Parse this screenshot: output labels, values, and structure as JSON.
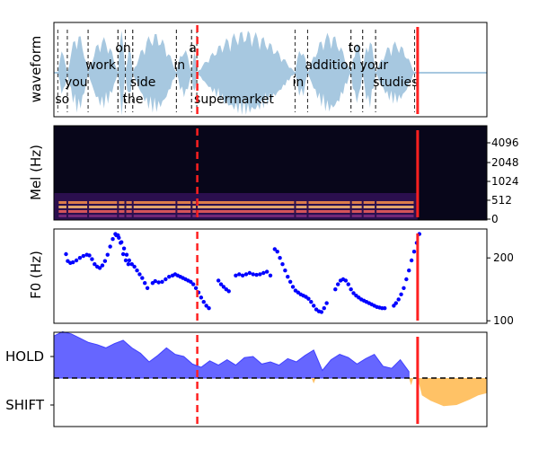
{
  "chart_data": [
    {
      "type": "area",
      "panel": "waveform",
      "ylabel": "waveform",
      "colors": {
        "wave": "#a7c8e0",
        "boundary": "#333333",
        "current_time": "#ff2020",
        "frame_edge": "#ff2020"
      },
      "words": [
        {
          "text": "so",
          "start": 0.09,
          "end": 0.31
        },
        {
          "text": "you",
          "start": 0.31,
          "end": 0.79
        },
        {
          "text": "work",
          "start": 0.79,
          "end": 1.48
        },
        {
          "text": "on",
          "start": 1.48,
          "end": 1.65
        },
        {
          "text": "the",
          "start": 1.65,
          "end": 1.82
        },
        {
          "text": "side",
          "start": 1.82,
          "end": 2.83
        },
        {
          "text": "in",
          "start": 2.83,
          "end": 3.18
        },
        {
          "text": "a",
          "start": 3.18,
          "end": 3.3
        },
        {
          "text": "supermarket",
          "start": 3.3,
          "end": 5.57
        },
        {
          "text": "in",
          "start": 5.57,
          "end": 5.86
        },
        {
          "text": "addition",
          "start": 5.86,
          "end": 6.86
        },
        {
          "text": "to",
          "start": 6.86,
          "end": 7.13
        },
        {
          "text": "your",
          "start": 7.13,
          "end": 7.43
        },
        {
          "text": "studies",
          "start": 7.43,
          "end": 8.33
        }
      ],
      "word_label_row": [
        5,
        3,
        2,
        1,
        5,
        3,
        2,
        1,
        5,
        3,
        2,
        1,
        4,
        3
      ],
      "time_range": [
        0,
        10
      ],
      "current_time": 3.0,
      "end_marker": 8.4
    },
    {
      "type": "heatmap",
      "panel": "mel_spectrogram",
      "ylabel": "Mel (Hz)",
      "yticks": [
        "0",
        "512",
        "1024",
        "2048",
        "4096"
      ],
      "time_range": [
        0,
        10
      ],
      "current_time": 3.0,
      "end_marker": 8.4
    },
    {
      "type": "scatter",
      "panel": "f0",
      "ylabel": "F0 (Hz)",
      "yticks": [
        100,
        200
      ],
      "ylim": [
        96,
        246
      ],
      "time_range": [
        0,
        10
      ],
      "current_time": 3.0,
      "end_marker": 8.4,
      "colors": {
        "points": "#0000ff"
      },
      "segments": [
        {
          "x": [
            0.28,
            0.32,
            0.38,
            0.44,
            0.52,
            0.6,
            0.68,
            0.76,
            0.82,
            0.88,
            0.94,
            1.0,
            1.06,
            1.12,
            1.18,
            1.24,
            1.3,
            1.36,
            1.42,
            1.48,
            1.54,
            1.6,
            1.66,
            1.72
          ],
          "y": [
            206,
            195,
            192,
            193,
            196,
            200,
            203,
            205,
            204,
            198,
            190,
            186,
            184,
            188,
            195,
            205,
            218,
            230,
            238,
            236,
            224,
            206,
            196,
            190
          ]
        },
        {
          "x": [
            1.44,
            1.5,
            1.56,
            1.62,
            1.68,
            1.74,
            1.8,
            1.86,
            1.92,
            1.98,
            2.04,
            2.1,
            2.16
          ],
          "y": [
            236,
            232,
            225,
            215,
            205,
            196,
            190,
            186,
            180,
            174,
            168,
            160,
            152
          ]
        },
        {
          "x": [
            2.28,
            2.34,
            2.42,
            2.5,
            2.58,
            2.66,
            2.74,
            2.8,
            2.86,
            2.92,
            2.98,
            3.04,
            3.1,
            3.16,
            3.22,
            3.28,
            3.34,
            3.4,
            3.46,
            3.52,
            3.58
          ],
          "y": [
            160,
            163,
            161,
            162,
            166,
            170,
            172,
            174,
            172,
            170,
            168,
            166,
            164,
            162,
            158,
            152,
            145,
            137,
            130,
            124,
            120
          ]
        },
        {
          "x": [
            3.8,
            3.86,
            3.92,
            3.98,
            4.04
          ],
          "y": [
            164,
            158,
            154,
            150,
            147
          ]
        },
        {
          "x": [
            4.2,
            4.28,
            4.36,
            4.44,
            4.52,
            4.6,
            4.68,
            4.76,
            4.84,
            4.92,
            5.0
          ],
          "y": [
            172,
            174,
            172,
            174,
            176,
            174,
            173,
            174,
            176,
            178,
            172
          ]
        },
        {
          "x": [
            5.1,
            5.16,
            5.22,
            5.28,
            5.34,
            5.4,
            5.46,
            5.52,
            5.58,
            5.64,
            5.7,
            5.76,
            5.82,
            5.88,
            5.94,
            6.0,
            6.06,
            6.12,
            6.18,
            6.24,
            6.3
          ],
          "y": [
            214,
            210,
            200,
            190,
            180,
            170,
            162,
            154,
            148,
            145,
            142,
            140,
            138,
            135,
            130,
            124,
            118,
            115,
            114,
            120,
            128
          ]
        },
        {
          "x": [
            6.5,
            6.56,
            6.62,
            6.68,
            6.74,
            6.8,
            6.86,
            6.92,
            6.98,
            7.04,
            7.1,
            7.16,
            7.22,
            7.28,
            7.34,
            7.4,
            7.46,
            7.52,
            7.58,
            7.64
          ],
          "y": [
            150,
            158,
            164,
            166,
            164,
            158,
            150,
            144,
            140,
            137,
            134,
            132,
            130,
            128,
            126,
            124,
            122,
            121,
            120,
            120
          ]
        },
        {
          "x": [
            7.85,
            7.9,
            7.96,
            8.02,
            8.08,
            8.14,
            8.2,
            8.26,
            8.32,
            8.38,
            8.44
          ],
          "y": [
            124,
            128,
            134,
            142,
            152,
            166,
            180,
            196,
            210,
            224,
            238
          ]
        }
      ]
    },
    {
      "type": "area",
      "panel": "turn_taking",
      "yticklabels": [
        "HOLD",
        "SHIFT"
      ],
      "time_range": [
        0,
        10
      ],
      "current_time": 3.0,
      "end_marker": 8.4,
      "colors": {
        "hold": "#6666ff",
        "shift": "#ffc266",
        "baseline": "#000000"
      },
      "hold_x": [
        0,
        0.2,
        0.4,
        0.6,
        0.8,
        1.0,
        1.2,
        1.4,
        1.6,
        1.8,
        2.0,
        2.2,
        2.4,
        2.6,
        2.8,
        3.0,
        3.2,
        3.4,
        3.6,
        3.8,
        4.0,
        4.2,
        4.4,
        4.6,
        4.8,
        5.0,
        5.2,
        5.4,
        5.6,
        5.8,
        6.0,
        6.2,
        6.4,
        6.6,
        6.8,
        7.0,
        7.2,
        7.4,
        7.6,
        7.8,
        8.0,
        8.2
      ],
      "hold_y": [
        0.78,
        0.86,
        0.82,
        0.74,
        0.66,
        0.62,
        0.56,
        0.64,
        0.7,
        0.56,
        0.46,
        0.3,
        0.42,
        0.56,
        0.44,
        0.4,
        0.26,
        0.2,
        0.32,
        0.24,
        0.34,
        0.24,
        0.38,
        0.4,
        0.26,
        0.3,
        0.24,
        0.36,
        0.3,
        0.42,
        0.52,
        0.14,
        0.34,
        0.44,
        0.38,
        0.26,
        0.36,
        0.44,
        0.22,
        0.18,
        0.34,
        0.12
      ],
      "shift_x": [
        6.0,
        6.1,
        8.5,
        8.7,
        9.0,
        9.3,
        9.6,
        9.8,
        10.0
      ],
      "shift_y": [
        -0.1,
        0,
        -0.32,
        -0.42,
        -0.52,
        -0.5,
        -0.4,
        -0.32,
        -0.28
      ]
    }
  ]
}
